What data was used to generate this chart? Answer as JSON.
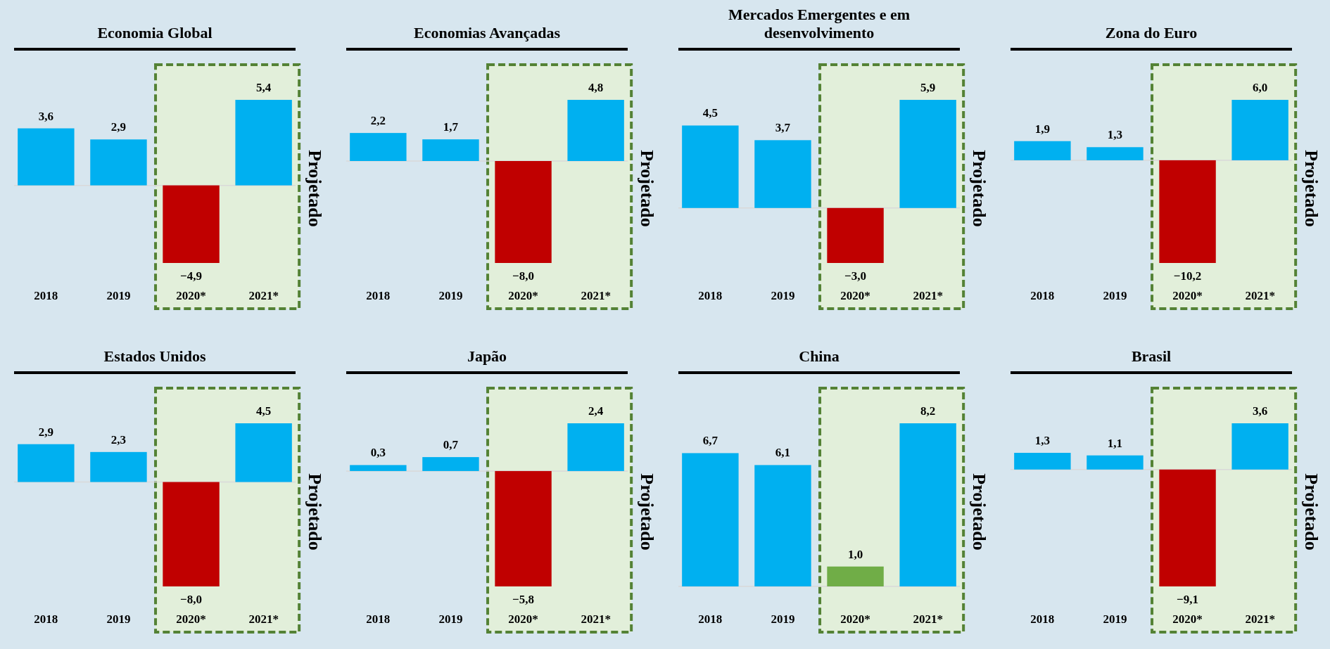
{
  "chart_data": [
    {
      "type": "bar",
      "title": "Economia Global",
      "categories": [
        "2018",
        "2019",
        "2020*",
        "2021*"
      ],
      "values": [
        3.6,
        2.9,
        -4.9,
        5.4
      ],
      "value_labels": [
        "3,6",
        "2,9",
        "−4,9",
        "5,4"
      ],
      "colors": [
        "#00b0f0",
        "#00b0f0",
        "#c00000",
        "#00b0f0"
      ],
      "bands": [
        {
          "axis": "x",
          "from": "2020*",
          "to": "2021*",
          "label": "Projetado",
          "color": "#e2efda"
        }
      ]
    },
    {
      "type": "bar",
      "title": "Economias Avançadas",
      "categories": [
        "2018",
        "2019",
        "2020*",
        "2021*"
      ],
      "values": [
        2.2,
        1.7,
        -8.0,
        4.8
      ],
      "value_labels": [
        "2,2",
        "1,7",
        "−8,0",
        "4,8"
      ],
      "colors": [
        "#00b0f0",
        "#00b0f0",
        "#c00000",
        "#00b0f0"
      ],
      "bands": [
        {
          "axis": "x",
          "from": "2020*",
          "to": "2021*",
          "label": "Projetado",
          "color": "#e2efda"
        }
      ]
    },
    {
      "type": "bar",
      "title": "Mercados Emergentes e em desenvolvimento",
      "categories": [
        "2018",
        "2019",
        "2020*",
        "2021*"
      ],
      "values": [
        4.5,
        3.7,
        -3.0,
        5.9
      ],
      "value_labels": [
        "4,5",
        "3,7",
        "−3,0",
        "5,9"
      ],
      "colors": [
        "#00b0f0",
        "#00b0f0",
        "#c00000",
        "#00b0f0"
      ],
      "bands": [
        {
          "axis": "x",
          "from": "2020*",
          "to": "2021*",
          "label": "Projetado",
          "color": "#e2efda"
        }
      ]
    },
    {
      "type": "bar",
      "title": "Zona do Euro",
      "categories": [
        "2018",
        "2019",
        "2020*",
        "2021*"
      ],
      "values": [
        1.9,
        1.3,
        -10.2,
        6.0
      ],
      "value_labels": [
        "1,9",
        "1,3",
        "−10,2",
        "6,0"
      ],
      "colors": [
        "#00b0f0",
        "#00b0f0",
        "#c00000",
        "#00b0f0"
      ],
      "bands": [
        {
          "axis": "x",
          "from": "2020*",
          "to": "2021*",
          "label": "Projetado",
          "color": "#e2efda"
        }
      ]
    },
    {
      "type": "bar",
      "title": "Estados Unidos",
      "categories": [
        "2018",
        "2019",
        "2020*",
        "2021*"
      ],
      "values": [
        2.9,
        2.3,
        -8.0,
        4.5
      ],
      "value_labels": [
        "2,9",
        "2,3",
        "−8,0",
        "4,5"
      ],
      "colors": [
        "#00b0f0",
        "#00b0f0",
        "#c00000",
        "#00b0f0"
      ],
      "bands": [
        {
          "axis": "x",
          "from": "2020*",
          "to": "2021*",
          "label": "Projetado",
          "color": "#e2efda"
        }
      ]
    },
    {
      "type": "bar",
      "title": "Japão",
      "categories": [
        "2018",
        "2019",
        "2020*",
        "2021*"
      ],
      "values": [
        0.3,
        0.7,
        -5.8,
        2.4
      ],
      "value_labels": [
        "0,3",
        "0,7",
        "−5,8",
        "2,4"
      ],
      "colors": [
        "#00b0f0",
        "#00b0f0",
        "#c00000",
        "#00b0f0"
      ],
      "bands": [
        {
          "axis": "x",
          "from": "2020*",
          "to": "2021*",
          "label": "Projetado",
          "color": "#e2efda"
        }
      ]
    },
    {
      "type": "bar",
      "title": "China",
      "categories": [
        "2018",
        "2019",
        "2020*",
        "2021*"
      ],
      "values": [
        6.7,
        6.1,
        1.0,
        8.2
      ],
      "value_labels": [
        "6,7",
        "6,1",
        "1,0",
        "8,2"
      ],
      "colors": [
        "#00b0f0",
        "#00b0f0",
        "#70ad47",
        "#00b0f0"
      ],
      "bands": [
        {
          "axis": "x",
          "from": "2020*",
          "to": "2021*",
          "label": "Projetado",
          "color": "#e2efda"
        }
      ]
    },
    {
      "type": "bar",
      "title": "Brasil",
      "categories": [
        "2018",
        "2019",
        "2020*",
        "2021*"
      ],
      "values": [
        1.3,
        1.1,
        -9.1,
        3.6
      ],
      "value_labels": [
        "1,3",
        "1,1",
        "−9,1",
        "3,6"
      ],
      "colors": [
        "#00b0f0",
        "#00b0f0",
        "#c00000",
        "#00b0f0"
      ],
      "bands": [
        {
          "axis": "x",
          "from": "2020*",
          "to": "2021*",
          "label": "Projetado",
          "color": "#e2efda"
        }
      ]
    }
  ]
}
